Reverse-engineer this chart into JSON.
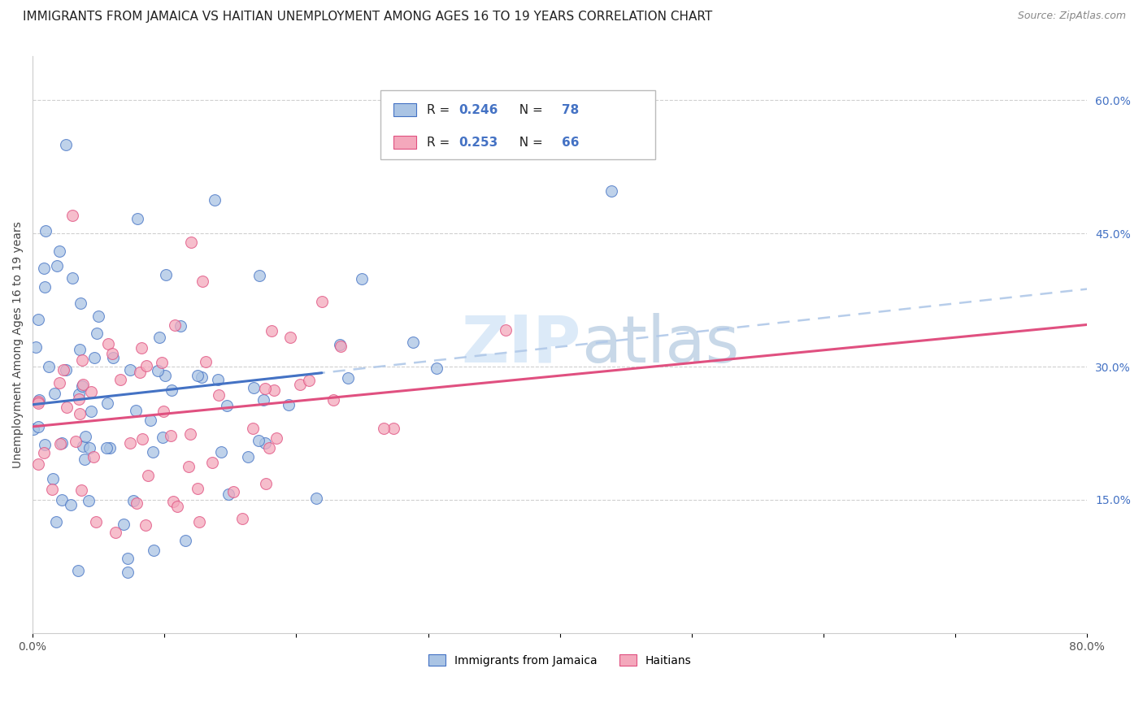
{
  "title": "IMMIGRANTS FROM JAMAICA VS HAITIAN UNEMPLOYMENT AMONG AGES 16 TO 19 YEARS CORRELATION CHART",
  "source": "Source: ZipAtlas.com",
  "ylabel": "Unemployment Among Ages 16 to 19 years",
  "xlim": [
    0.0,
    0.8
  ],
  "ylim": [
    0.0,
    0.65
  ],
  "xtick_vals": [
    0.0,
    0.1,
    0.2,
    0.3,
    0.4,
    0.5,
    0.6,
    0.7,
    0.8
  ],
  "xticklabels": [
    "0.0%",
    "",
    "",
    "",
    "",
    "",
    "",
    "",
    "80.0%"
  ],
  "ytick_right_labels": [
    "60.0%",
    "45.0%",
    "30.0%",
    "15.0%"
  ],
  "ytick_right_values": [
    0.6,
    0.45,
    0.3,
    0.15
  ],
  "legend_r1": "0.246",
  "legend_n1": "78",
  "legend_r2": "0.253",
  "legend_n2": "66",
  "color_jamaica": "#aac4e4",
  "color_haiti": "#f4a8bc",
  "color_line_jamaica": "#4472c4",
  "color_line_haiti": "#e05080",
  "color_text_blue": "#4472c4",
  "color_text_dark": "#333333",
  "color_dashed": "#b0c8e8",
  "watermark_color": "#dceaf8",
  "title_fontsize": 11,
  "axis_label_fontsize": 10,
  "tick_fontsize": 10
}
